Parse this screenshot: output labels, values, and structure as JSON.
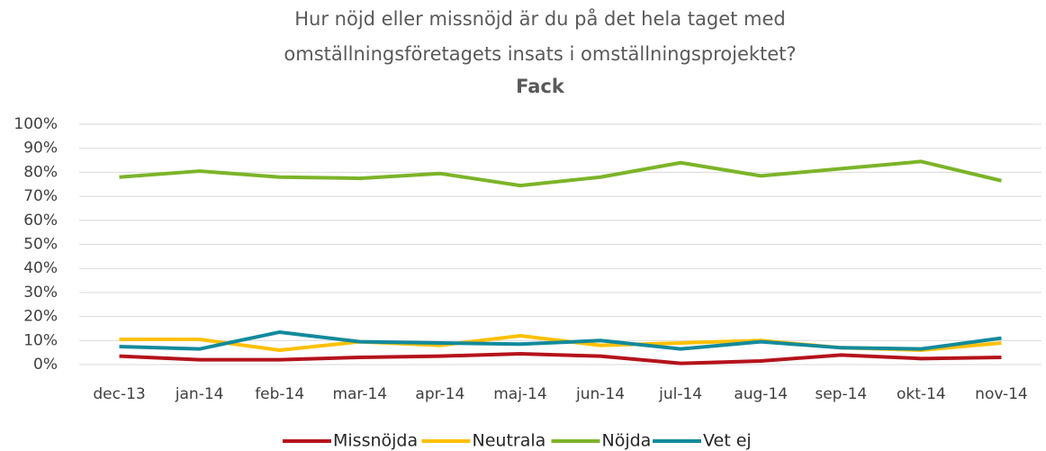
{
  "chart_data": {
    "type": "line",
    "title": [
      "Hur nöjd eller missnöjd är du på det hela taget med",
      "omställningsföretagets insats i omställningsprojektet?"
    ],
    "subtitle": "Fack",
    "categories": [
      "dec-13",
      "jan-14",
      "feb-14",
      "mar-14",
      "apr-14",
      "maj-14",
      "jun-14",
      "jul-14",
      "aug-14",
      "sep-14",
      "okt-14",
      "nov-14"
    ],
    "series": [
      {
        "name": "Missnöjda",
        "color": "#b5121b",
        "values": [
          3.5,
          2,
          2,
          3,
          3.5,
          4.5,
          3.5,
          0.5,
          1.5,
          4,
          2.5,
          3
        ]
      },
      {
        "name": "Neutrala",
        "color": "#ffc000",
        "values": [
          10.5,
          10.5,
          6,
          9.5,
          8,
          12,
          8,
          9,
          10,
          7,
          6,
          9
        ]
      },
      {
        "name": "Nöjda",
        "color": "#7cb428",
        "values": [
          78,
          80.5,
          78,
          77.5,
          79.5,
          74.5,
          78,
          84,
          78.5,
          81.5,
          84.5,
          76.5
        ]
      },
      {
        "name": "Vet ej",
        "color": "#138a9c",
        "values": [
          7.5,
          6.5,
          13.5,
          9.5,
          9,
          8.5,
          10,
          6.5,
          9.5,
          7,
          6.5,
          11
        ]
      }
    ],
    "ylim": [
      0,
      100
    ],
    "yticks": [
      {
        "value": 0,
        "label": "0%"
      },
      {
        "value": 10,
        "label": "10%"
      },
      {
        "value": 20,
        "label": "20%"
      },
      {
        "value": 30,
        "label": "30%"
      },
      {
        "value": 40,
        "label": "40%"
      },
      {
        "value": 50,
        "label": "50%"
      },
      {
        "value": 60,
        "label": "60%"
      },
      {
        "value": 70,
        "label": "70%"
      },
      {
        "value": 80,
        "label": "80%"
      },
      {
        "value": 90,
        "label": "90%"
      },
      {
        "value": 100,
        "label": "100%"
      }
    ],
    "grid": true,
    "legend": "bottom"
  }
}
